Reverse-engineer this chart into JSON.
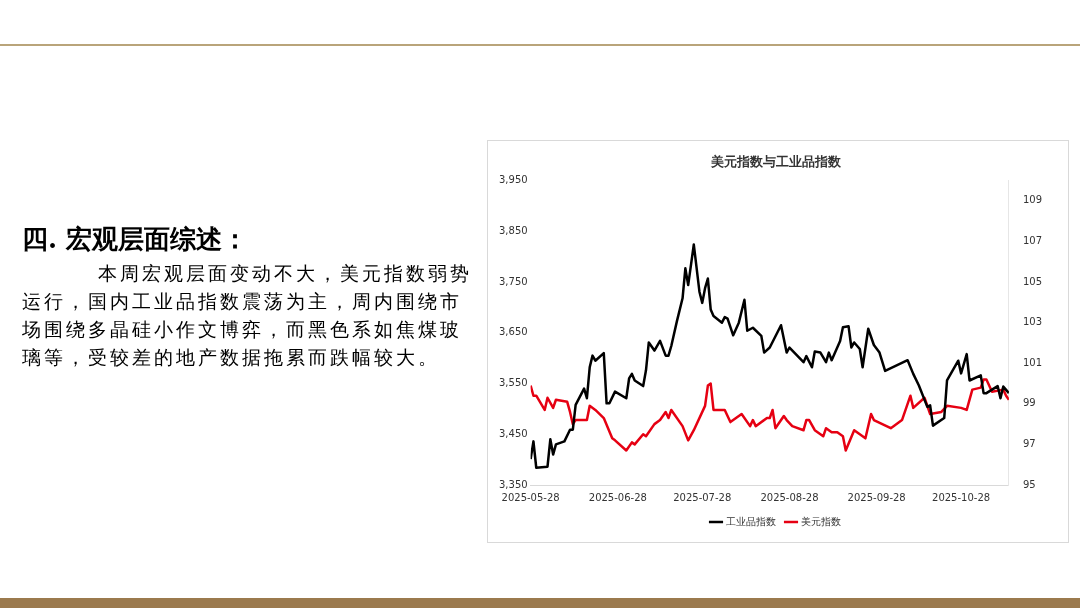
{
  "chart_data": {
    "type": "line",
    "title": "美元指数与工业品指数",
    "annotations": [
      "四. 宏观层面综述：",
      "本周宏观层面变动不大，美元指数弱势运行，国内工业品指数震荡为主，周内围绕市场围绕多晶硅小作文博弈，而黑色系如焦煤玻璃等，受较差的地产数据拖累而跌幅较大。"
    ],
    "xlim": [
      "2025-05-28",
      "2025-11-14"
    ],
    "xticks": [
      "2025-05-28",
      "2025-06-28",
      "2025-07-28",
      "2025-08-28",
      "2025-09-28",
      "2025-10-28"
    ],
    "ylim": [
      3350,
      3950
    ],
    "yticks": [
      {
        "value": 3350,
        "label": "3,350"
      },
      {
        "value": 3450,
        "label": "3,450"
      },
      {
        "value": 3550,
        "label": "3,550"
      },
      {
        "value": 3650,
        "label": "3,650"
      },
      {
        "value": 3750,
        "label": "3,750"
      },
      {
        "value": 3850,
        "label": "3,850"
      },
      {
        "value": 3950,
        "label": "3,950"
      }
    ],
    "y2lim": [
      95,
      110
    ],
    "y2ticks": [
      95,
      97,
      99,
      101,
      103,
      105,
      107,
      109
    ],
    "legend": "bottom",
    "series": [
      {
        "name": "工业品指数",
        "color": "#000000",
        "x": [
          "2025-05-28",
          "2025-05-29",
          "2025-05-30",
          "2025-06-03",
          "2025-06-04",
          "2025-06-05",
          "2025-06-06",
          "2025-06-09",
          "2025-06-11",
          "2025-06-12",
          "2025-06-13",
          "2025-06-16",
          "2025-06-17",
          "2025-06-18",
          "2025-06-19",
          "2025-06-20",
          "2025-06-23",
          "2025-06-24",
          "2025-06-25",
          "2025-06-27",
          "2025-07-01",
          "2025-07-02",
          "2025-07-03",
          "2025-07-04",
          "2025-07-07",
          "2025-07-08",
          "2025-07-09",
          "2025-07-11",
          "2025-07-13",
          "2025-07-15",
          "2025-07-16",
          "2025-07-17",
          "2025-07-19",
          "2025-07-21",
          "2025-07-22",
          "2025-07-23",
          "2025-07-25",
          "2025-07-27",
          "2025-07-28",
          "2025-07-29",
          "2025-07-30",
          "2025-07-31",
          "2025-08-01",
          "2025-08-04",
          "2025-08-05",
          "2025-08-06",
          "2025-08-08",
          "2025-08-10",
          "2025-08-12",
          "2025-08-13",
          "2025-08-15",
          "2025-08-18",
          "2025-08-19",
          "2025-08-21",
          "2025-08-25",
          "2025-08-27",
          "2025-08-28",
          "2025-09-02",
          "2025-09-03",
          "2025-09-05",
          "2025-09-06",
          "2025-09-08",
          "2025-09-10",
          "2025-09-11",
          "2025-09-12",
          "2025-09-15",
          "2025-09-16",
          "2025-09-18",
          "2025-09-19",
          "2025-09-20",
          "2025-09-22",
          "2025-09-23",
          "2025-09-25",
          "2025-09-27",
          "2025-09-29",
          "2025-10-01",
          "2025-10-09",
          "2025-10-11",
          "2025-10-13",
          "2025-10-16",
          "2025-10-17",
          "2025-10-18",
          "2025-10-22",
          "2025-10-23",
          "2025-10-27",
          "2025-10-28",
          "2025-10-30",
          "2025-10-31",
          "2025-11-04",
          "2025-11-05",
          "2025-11-06",
          "2025-11-10",
          "2025-11-11",
          "2025-11-12",
          "2025-11-14"
        ],
        "values": [
          3401,
          3436,
          3384,
          3386,
          3440,
          3410,
          3430,
          3436,
          3459,
          3459,
          3508,
          3540,
          3521,
          3582,
          3605,
          3595,
          3610,
          3511,
          3511,
          3534,
          3521,
          3560,
          3569,
          3556,
          3545,
          3576,
          3631,
          3615,
          3634,
          3605,
          3605,
          3624,
          3673,
          3718,
          3777,
          3744,
          3824,
          3731,
          3709,
          3738,
          3757,
          3696,
          3683,
          3670,
          3681,
          3678,
          3645,
          3670,
          3715,
          3654,
          3660,
          3644,
          3611,
          3621,
          3665,
          3611,
          3621,
          3592,
          3604,
          3582,
          3613,
          3611,
          3592,
          3611,
          3596,
          3634,
          3661,
          3663,
          3621,
          3631,
          3618,
          3582,
          3658,
          3626,
          3611,
          3575,
          3596,
          3569,
          3546,
          3504,
          3507,
          3467,
          3482,
          3556,
          3595,
          3570,
          3608,
          3556,
          3566,
          3531,
          3531,
          3545,
          3521,
          3544,
          3531
        ]
      },
      {
        "name": "美元指数",
        "color": "#e60012",
        "axis": "y2",
        "x": [
          "2025-05-28",
          "2025-05-29",
          "2025-05-30",
          "2025-06-02",
          "2025-06-03",
          "2025-06-05",
          "2025-06-06",
          "2025-06-10",
          "2025-06-11",
          "2025-06-12",
          "2025-06-13",
          "2025-06-17",
          "2025-06-18",
          "2025-06-20",
          "2025-06-23",
          "2025-06-26",
          "2025-06-27",
          "2025-07-01",
          "2025-07-03",
          "2025-07-04",
          "2025-07-07",
          "2025-07-08",
          "2025-07-11",
          "2025-07-13",
          "2025-07-15",
          "2025-07-16",
          "2025-07-17",
          "2025-07-21",
          "2025-07-23",
          "2025-07-25",
          "2025-07-29",
          "2025-07-30",
          "2025-07-31",
          "2025-08-01",
          "2025-08-05",
          "2025-08-07",
          "2025-08-09",
          "2025-08-11",
          "2025-08-14",
          "2025-08-15",
          "2025-08-16",
          "2025-08-20",
          "2025-08-21",
          "2025-08-22",
          "2025-08-23",
          "2025-08-26",
          "2025-08-27",
          "2025-08-29",
          "2025-09-02",
          "2025-09-03",
          "2025-09-04",
          "2025-09-06",
          "2025-09-09",
          "2025-09-10",
          "2025-09-12",
          "2025-09-14",
          "2025-09-16",
          "2025-09-17",
          "2025-09-20",
          "2025-09-24",
          "2025-09-26",
          "2025-09-27",
          "2025-10-03",
          "2025-10-04",
          "2025-10-07",
          "2025-10-10",
          "2025-10-11",
          "2025-10-15",
          "2025-10-17",
          "2025-10-21",
          "2025-10-23",
          "2025-10-28",
          "2025-10-30",
          "2025-11-01",
          "2025-11-04",
          "2025-11-05",
          "2025-11-06",
          "2025-11-08",
          "2025-11-12",
          "2025-11-13",
          "2025-11-14"
        ],
        "values": [
          99.9,
          99.4,
          99.4,
          98.7,
          99.3,
          98.8,
          99.2,
          99.1,
          98.6,
          98.0,
          98.2,
          98.2,
          98.9,
          98.7,
          98.3,
          97.3,
          97.2,
          96.7,
          97.1,
          97.0,
          97.5,
          97.4,
          98.0,
          98.2,
          98.6,
          98.3,
          98.7,
          97.9,
          97.2,
          97.7,
          98.9,
          99.9,
          100.0,
          98.7,
          98.7,
          98.1,
          98.3,
          98.5,
          97.9,
          98.2,
          97.9,
          98.3,
          98.3,
          98.7,
          97.8,
          98.4,
          98.2,
          97.9,
          97.7,
          98.2,
          98.2,
          97.7,
          97.4,
          97.8,
          97.6,
          97.6,
          97.4,
          96.7,
          97.7,
          97.3,
          98.5,
          98.2,
          97.8,
          97.9,
          98.2,
          99.4,
          98.8,
          99.3,
          98.5,
          98.6,
          98.9,
          98.8,
          98.7,
          99.7,
          99.8,
          100.2,
          100.2,
          99.6,
          99.7,
          99.4,
          99.2
        ]
      }
    ]
  }
}
